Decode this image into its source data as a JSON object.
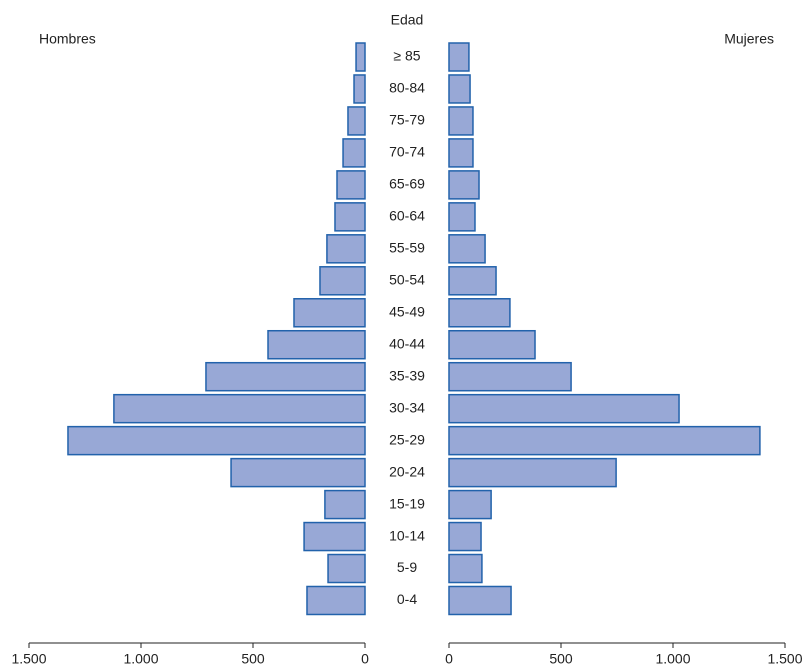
{
  "chart_data": {
    "type": "pyramid",
    "y_label": "Edad",
    "categories": [
      "≥ 85",
      "80-84",
      "75-79",
      "70-74",
      "65-69",
      "60-64",
      "55-59",
      "50-54",
      "45-49",
      "40-44",
      "35-39",
      "30-34",
      "25-29",
      "20-24",
      "15-19",
      "10-14",
      "5-9",
      "0-4"
    ],
    "series": [
      {
        "name": "Hombres",
        "color": "#98a8d6",
        "edge_color": "#2262ab",
        "values": [
          40,
          49,
          76,
          98,
          125,
          134,
          170,
          201,
          317,
          433,
          710,
          1121,
          1326,
          598,
          179,
          272,
          165,
          259
        ]
      },
      {
        "name": "Mujeres",
        "color": "#98a8d6",
        "edge_color": "#2262ab",
        "values": [
          89,
          94,
          107,
          107,
          134,
          116,
          161,
          210,
          272,
          384,
          545,
          1027,
          1388,
          746,
          188,
          143,
          147,
          277
        ]
      }
    ],
    "xlim": [
      0,
      1500
    ],
    "xticks": [
      0,
      500,
      {
        "value": 1000,
        "label": "1.000"
      },
      {
        "value": 1500,
        "label": "1.500"
      }
    ]
  }
}
